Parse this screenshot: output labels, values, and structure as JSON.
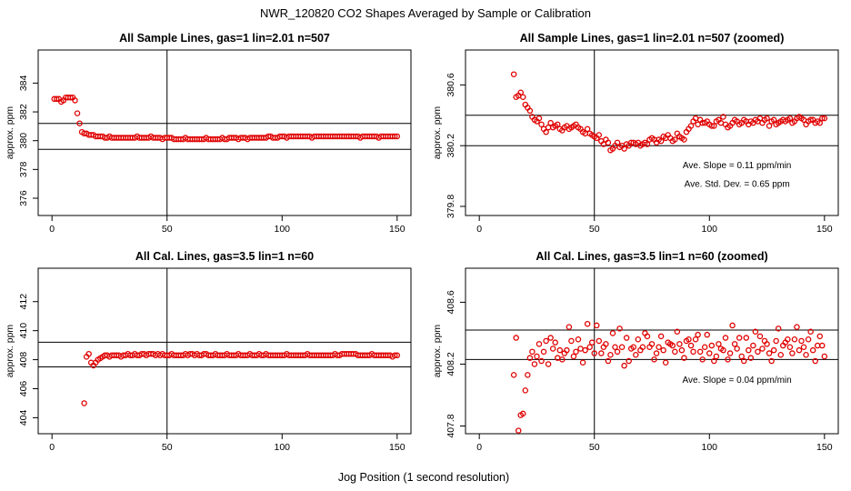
{
  "figure": {
    "title": "NWR_120820  CO2 Shapes Averaged by Sample or Calibration",
    "xlabel": "Jog Position (1 second resolution)"
  },
  "colors": {
    "marker": "#e00000",
    "axes": "#000000"
  },
  "chart_data": [
    {
      "type": "scatter",
      "title": "All Sample Lines, gas=1 lin=2.01 n=507",
      "ylabel": "approx. ppm",
      "xlim": [
        -6,
        156
      ],
      "ylim": [
        374.8,
        386.3
      ],
      "xticks": [
        0,
        50,
        100,
        150
      ],
      "yticks": [
        376,
        378,
        380,
        382,
        384
      ],
      "hlines": [
        381.2,
        379.4
      ],
      "vline": 50,
      "annotations": [],
      "start_x": 1,
      "y": [
        382.9,
        382.9,
        382.9,
        382.7,
        382.8,
        383.0,
        383.0,
        383.0,
        383.0,
        382.8,
        381.9,
        381.2,
        380.6,
        380.5,
        380.5,
        380.4,
        380.4,
        380.4,
        380.3,
        380.3,
        380.3,
        380.3,
        380.2,
        380.2,
        380.3,
        380.2,
        380.2,
        380.2,
        380.2,
        380.2,
        380.2,
        380.2,
        380.2,
        380.2,
        380.2,
        380.2,
        380.3,
        380.2,
        380.2,
        380.2,
        380.2,
        380.2,
        380.3,
        380.2,
        380.2,
        380.2,
        380.2,
        380.1,
        380.2,
        380.2,
        380.2,
        380.2,
        380.1,
        380.1,
        380.1,
        380.1,
        380.1,
        380.2,
        380.1,
        380.1,
        380.1,
        380.1,
        380.1,
        380.1,
        380.1,
        380.1,
        380.2,
        380.1,
        380.1,
        380.1,
        380.1,
        380.1,
        380.1,
        380.2,
        380.1,
        380.1,
        380.2,
        380.2,
        380.2,
        380.2,
        380.1,
        380.2,
        380.2,
        380.2,
        380.1,
        380.2,
        380.2,
        380.2,
        380.2,
        380.2,
        380.2,
        380.2,
        380.2,
        380.3,
        380.3,
        380.2,
        380.2,
        380.2,
        380.3,
        380.3,
        380.3,
        380.2,
        380.3,
        380.3,
        380.3,
        380.3,
        380.3,
        380.3,
        380.3,
        380.3,
        380.3,
        380.3,
        380.2,
        380.3,
        380.3,
        380.3,
        380.3,
        380.3,
        380.3,
        380.3,
        380.3,
        380.3,
        380.3,
        380.3,
        380.3,
        380.3,
        380.3,
        380.3,
        380.3,
        380.3,
        380.3,
        380.3,
        380.3,
        380.2,
        380.3,
        380.3,
        380.3,
        380.3,
        380.3,
        380.3,
        380.3,
        380.2,
        380.3,
        380.3,
        380.3,
        380.3,
        380.3,
        380.3,
        380.3,
        380.3
      ]
    },
    {
      "type": "scatter",
      "title": "All Sample Lines, gas=1 lin=2.01 n=507 (zoomed)",
      "ylabel": "approx. ppm",
      "xlim": [
        -6,
        156
      ],
      "ylim": [
        379.74,
        380.83
      ],
      "xticks": [
        0,
        50,
        100,
        150
      ],
      "yticks": [
        379.8,
        380.2,
        380.6
      ],
      "ytick_labels": [
        "379.8",
        "380.2",
        "380.6"
      ],
      "hlines": [
        380.4,
        380.2
      ],
      "vline": 50,
      "annotations": [
        {
          "text": "Ave. Slope =  0.11  ppm/min",
          "x": 112,
          "y": 380.05
        },
        {
          "text": "Ave. Std. Dev. =  0.65  ppm",
          "x": 112,
          "y": 379.93
        }
      ],
      "start_x": 15,
      "y": [
        380.67,
        380.52,
        380.53,
        380.55,
        380.52,
        380.47,
        380.45,
        380.43,
        380.39,
        380.37,
        380.36,
        380.38,
        380.34,
        380.31,
        380.29,
        380.32,
        380.35,
        380.32,
        380.33,
        380.34,
        380.31,
        380.3,
        380.32,
        380.33,
        380.31,
        380.32,
        380.33,
        380.34,
        380.32,
        380.31,
        380.29,
        380.28,
        380.31,
        380.28,
        380.27,
        380.26,
        380.25,
        380.27,
        380.23,
        380.21,
        380.24,
        380.22,
        380.17,
        380.18,
        380.2,
        380.22,
        380.19,
        380.2,
        380.18,
        380.21,
        380.2,
        380.22,
        380.22,
        380.21,
        380.22,
        380.2,
        380.21,
        380.22,
        380.21,
        380.24,
        380.25,
        380.24,
        380.22,
        380.24,
        380.23,
        380.26,
        380.25,
        380.27,
        380.25,
        380.23,
        380.24,
        380.28,
        380.26,
        380.25,
        380.24,
        380.29,
        380.31,
        380.33,
        380.36,
        380.38,
        380.34,
        380.37,
        380.35,
        380.35,
        380.36,
        380.34,
        380.33,
        380.33,
        380.36,
        380.37,
        380.35,
        380.39,
        380.34,
        380.32,
        380.33,
        380.35,
        380.37,
        380.36,
        380.34,
        380.35,
        380.37,
        380.36,
        380.34,
        380.36,
        380.35,
        380.37,
        380.36,
        380.38,
        380.35,
        380.37,
        380.38,
        380.33,
        380.36,
        380.37,
        380.34,
        380.35,
        380.36,
        380.37,
        380.36,
        380.37,
        380.38,
        380.35,
        380.36,
        380.38,
        380.39,
        380.38,
        380.37,
        380.34,
        380.36,
        380.37,
        380.37,
        380.35,
        380.36,
        380.35,
        380.38,
        380.38
      ]
    },
    {
      "type": "scatter",
      "title": "All Cal. Lines, gas=3.5 lin=1 n=60",
      "ylabel": "approx. ppm",
      "xlim": [
        -6,
        156
      ],
      "ylim": [
        402.9,
        414.3
      ],
      "xticks": [
        0,
        50,
        100,
        150
      ],
      "yticks": [
        404,
        406,
        408,
        410,
        412
      ],
      "hlines": [
        409.2,
        407.5
      ],
      "vline": 50,
      "annotations": [],
      "start_x": 14,
      "y": [
        405.0,
        408.2,
        408.4,
        407.8,
        407.6,
        407.8,
        408.0,
        408.1,
        408.2,
        408.3,
        408.3,
        408.2,
        408.3,
        408.3,
        408.3,
        408.3,
        408.2,
        408.3,
        408.3,
        408.4,
        408.3,
        408.3,
        408.4,
        408.3,
        408.3,
        408.4,
        408.4,
        408.3,
        408.4,
        408.4,
        408.4,
        408.3,
        408.4,
        408.3,
        408.4,
        408.3,
        408.3,
        408.3,
        408.4,
        408.3,
        408.3,
        408.3,
        408.3,
        408.3,
        408.4,
        408.3,
        408.4,
        408.4,
        408.3,
        408.4,
        408.3,
        408.3,
        408.4,
        408.4,
        408.3,
        408.3,
        408.3,
        408.4,
        408.3,
        408.3,
        408.3,
        408.3,
        408.4,
        408.3,
        408.3,
        408.3,
        408.3,
        408.4,
        408.3,
        408.3,
        408.3,
        408.3,
        408.4,
        408.3,
        408.3,
        408.3,
        408.4,
        408.3,
        408.3,
        408.4,
        408.3,
        408.3,
        408.3,
        408.3,
        408.3,
        408.3,
        408.3,
        408.3,
        408.4,
        408.3,
        408.3,
        408.3,
        408.3,
        408.3,
        408.3,
        408.3,
        408.3,
        408.4,
        408.3,
        408.3,
        408.3,
        408.3,
        408.3,
        408.3,
        408.3,
        408.3,
        408.3,
        408.3,
        408.3,
        408.4,
        408.3,
        408.3,
        408.4,
        408.4,
        408.4,
        408.4,
        408.4,
        408.4,
        408.4,
        408.3,
        408.3,
        408.3,
        408.3,
        408.3,
        408.3,
        408.4,
        408.3,
        408.3,
        408.3,
        408.3,
        408.3,
        408.3,
        408.3,
        408.3,
        408.2,
        408.3,
        408.3
      ]
    },
    {
      "type": "scatter",
      "title": "All Cal. Lines, gas=3.5 lin=1 n=60 (zoomed)",
      "ylabel": "approx. ppm",
      "xlim": [
        -6,
        156
      ],
      "ylim": [
        407.75,
        408.82
      ],
      "xticks": [
        0,
        50,
        100,
        150
      ],
      "yticks": [
        407.8,
        408.2,
        408.6
      ],
      "ytick_labels": [
        "407.8",
        "408.2",
        "408.6"
      ],
      "hlines": [
        408.42,
        408.23
      ],
      "vline": 50,
      "annotations": [
        {
          "text": "Ave. Slope =  0.04  ppm/min",
          "x": 112,
          "y": 408.08
        }
      ],
      "start_x": 15,
      "y": [
        408.13,
        408.37,
        407.77,
        407.87,
        407.88,
        408.03,
        408.13,
        408.24,
        408.28,
        408.2,
        408.25,
        408.33,
        408.22,
        408.28,
        408.35,
        408.2,
        408.37,
        408.3,
        408.34,
        408.24,
        408.29,
        408.23,
        408.27,
        408.29,
        408.44,
        408.35,
        408.25,
        408.28,
        408.36,
        408.3,
        408.21,
        408.29,
        408.46,
        408.31,
        408.34,
        408.27,
        408.45,
        408.35,
        408.27,
        408.31,
        408.33,
        408.22,
        408.26,
        408.4,
        408.31,
        408.28,
        408.43,
        408.31,
        408.19,
        408.37,
        408.22,
        408.3,
        408.31,
        408.26,
        408.36,
        408.29,
        408.31,
        408.4,
        408.38,
        408.31,
        408.33,
        408.23,
        408.27,
        408.31,
        408.38,
        408.29,
        408.21,
        408.34,
        408.33,
        408.32,
        408.28,
        408.41,
        408.33,
        408.29,
        408.24,
        408.35,
        408.36,
        408.32,
        408.28,
        408.36,
        408.39,
        408.28,
        408.23,
        408.31,
        408.39,
        408.27,
        408.32,
        408.22,
        408.25,
        408.33,
        408.3,
        408.29,
        408.37,
        408.23,
        408.27,
        408.45,
        408.33,
        408.3,
        408.37,
        408.25,
        408.22,
        408.37,
        408.29,
        408.24,
        408.32,
        408.41,
        408.28,
        408.38,
        408.3,
        408.35,
        408.33,
        408.27,
        408.22,
        408.29,
        408.35,
        408.43,
        408.26,
        408.32,
        408.34,
        408.36,
        408.31,
        408.27,
        408.36,
        408.44,
        408.29,
        408.35,
        408.31,
        408.26,
        408.36,
        408.41,
        408.29,
        408.22,
        408.32,
        408.38,
        408.32,
        408.25
      ]
    }
  ]
}
